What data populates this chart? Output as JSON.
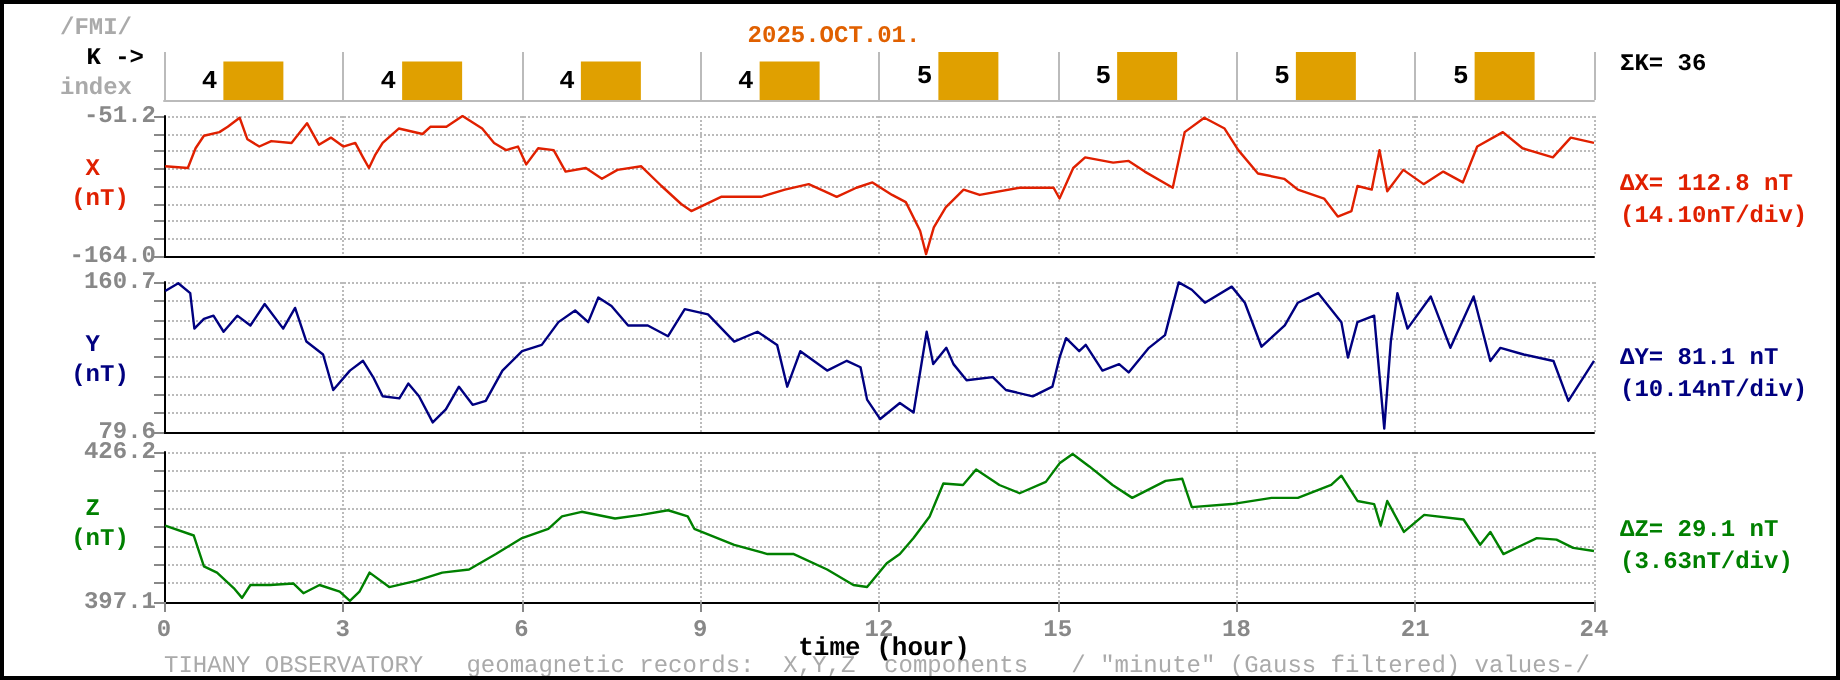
{
  "chart_data": [
    {
      "type": "bar",
      "title": "2025.OCT.01.",
      "ylabel": "K ->",
      "annotations": [
        "/FMI/",
        "index",
        "ΣK= 36"
      ],
      "categories": [
        null,
        null,
        null,
        null,
        null,
        null,
        null,
        null
      ],
      "values": [
        4,
        4,
        4,
        4,
        5,
        5,
        5,
        5
      ],
      "color": "#e0a000",
      "data_labels": true,
      "grid": "x",
      "tick_labels": false
    },
    {
      "type": "line",
      "ylabel": "X (nT)",
      "annotations": [
        "ΔX= 112.8 nT",
        "(14.10nT/div)"
      ],
      "xlim": [
        0,
        24
      ],
      "xticks": [
        0,
        3,
        6,
        9,
        12,
        15,
        18,
        21,
        24
      ],
      "ylim": [
        -164,
        -51.2
      ],
      "yticks": [
        {
          "value": -164,
          "label": "-164.0"
        },
        {
          "value": -149.9,
          "label": null
        },
        {
          "value": -135.8,
          "label": null
        },
        {
          "value": -121.7,
          "label": null
        },
        {
          "value": -107.6,
          "label": null
        },
        {
          "value": -93.5,
          "label": null
        },
        {
          "value": -79.4,
          "label": null
        },
        {
          "value": -65.3,
          "label": null
        },
        -51.2
      ],
      "grid": true,
      "tick_labels": "y",
      "series": [
        {
          "color": "#e02000",
          "x": [
            0.02,
            0.4,
            0.53,
            0.67,
            0.93,
            1.07,
            1.27,
            1.4,
            1.6,
            1.8,
            2.14,
            2.4,
            2.6,
            2.8,
            3.01,
            3.21,
            3.34,
            3.44,
            3.54,
            3.67,
            3.94,
            4.34,
            4.47,
            4.74,
            5.01,
            5.34,
            5.54,
            5.74,
            5.94,
            6.08,
            6.28,
            6.54,
            6.74,
            7.08,
            7.35,
            7.61,
            8.01,
            8.35,
            8.68,
            8.85,
            9.35,
            10.02,
            10.42,
            10.82,
            11.09,
            11.29,
            11.62,
            11.89,
            12.22,
            12.45,
            12.69,
            12.79,
            12.92,
            13.12,
            13.42,
            13.69,
            14.36,
            14.93,
            15.03,
            15.26,
            15.46,
            15.93,
            16.19,
            16.46,
            16.93,
            17.13,
            17.46,
            17.8,
            18.03,
            18.36,
            18.8,
            19.03,
            19.47,
            19.7,
            19.93,
            20.03,
            20.27,
            20.4,
            20.53,
            20.8,
            21.14,
            21.47,
            21.8,
            22.04,
            22.47,
            22.8,
            23.31,
            23.61,
            24
          ],
          "values": [
            -91.7,
            -93.1,
            -77.2,
            -67.1,
            -64.2,
            -59.9,
            -52.6,
            -70,
            -75.8,
            -71.4,
            -72.9,
            -57,
            -74.3,
            -68.6,
            -75.8,
            -72.9,
            -84.5,
            -93.1,
            -83,
            -72.9,
            -61.3,
            -65.7,
            -59.9,
            -59.9,
            -51.2,
            -61.3,
            -72.9,
            -78.7,
            -75.8,
            -90.2,
            -77.2,
            -78.7,
            -96,
            -93.1,
            -101.8,
            -94.6,
            -91.7,
            -107.6,
            -122.1,
            -127.8,
            -116.3,
            -116.3,
            -110.5,
            -106.1,
            -111.9,
            -116.3,
            -109,
            -104.7,
            -114.8,
            -120.6,
            -143.7,
            -162.5,
            -140.9,
            -124.9,
            -110.5,
            -114.8,
            -109,
            -109,
            -117.7,
            -93.1,
            -84.5,
            -88.8,
            -87.4,
            -96,
            -109,
            -64.2,
            -52.6,
            -61.3,
            -78.7,
            -97.5,
            -101.8,
            -110.5,
            -117.7,
            -132.2,
            -127.8,
            -107.6,
            -110.5,
            -78.7,
            -111.9,
            -94.6,
            -106.1,
            -96,
            -104.7,
            -75.8,
            -64.2,
            -77.2,
            -84.5,
            -68.6,
            -72.9
          ]
        }
      ]
    },
    {
      "type": "line",
      "ylabel": "Y (nT)",
      "annotations": [
        "ΔY= 81.1 nT",
        "(10.14nT/div)"
      ],
      "xlim": [
        0,
        24
      ],
      "xticks": [
        0,
        3,
        6,
        9,
        12,
        15,
        18,
        21,
        24
      ],
      "ylim": [
        79.6,
        160.7
      ],
      "yticks": [
        79.6,
        {
          "value": 89.7,
          "label": null
        },
        {
          "value": 99.9,
          "label": null
        },
        {
          "value": 110,
          "label": null
        },
        {
          "value": 120.2,
          "label": null
        },
        {
          "value": 130.3,
          "label": null
        },
        {
          "value": 140.4,
          "label": null
        },
        {
          "value": 150.6,
          "label": null
        },
        160.7
      ],
      "grid": true,
      "tick_labels": "y",
      "series": [
        {
          "color": "#000080",
          "x": [
            0.02,
            0.24,
            0.44,
            0.51,
            0.67,
            0.83,
            1,
            1.23,
            1.45,
            1.69,
            2,
            2.2,
            2.39,
            2.67,
            2.84,
            3.12,
            3.34,
            3.51,
            3.67,
            3.95,
            4.1,
            4.28,
            4.51,
            4.73,
            4.95,
            5.18,
            5.4,
            5.68,
            6.01,
            6.34,
            6.62,
            6.9,
            7.12,
            7.29,
            7.51,
            7.79,
            8.12,
            8.46,
            8.74,
            9.13,
            9.57,
            9.96,
            10.29,
            10.46,
            10.68,
            11.13,
            11.46,
            11.69,
            11.8,
            12.02,
            12.35,
            12.58,
            12.8,
            12.91,
            13.13,
            13.25,
            13.47,
            13.91,
            14.13,
            14.58,
            14.91,
            15.03,
            15.14,
            15.36,
            15.47,
            15.75,
            16.03,
            16.19,
            16.53,
            16.8,
            17.03,
            17.25,
            17.47,
            17.92,
            18.14,
            18.42,
            18.81,
            19.03,
            19.37,
            19.76,
            19.87,
            20.03,
            20.31,
            20.48,
            20.59,
            20.7,
            20.87,
            21.26,
            21.59,
            21.98,
            22.26,
            22.43,
            22.82,
            23.32,
            23.57,
            24
          ],
          "values": [
            155.8,
            160,
            154.7,
            135.5,
            140.8,
            142.5,
            133.8,
            142.5,
            137.2,
            148.8,
            135.5,
            146.7,
            128.5,
            121.5,
            102.3,
            112.8,
            118.1,
            109.3,
            98.9,
            97.8,
            105.8,
            98.9,
            84.8,
            91.8,
            104.1,
            94.3,
            96.4,
            112.8,
            123.3,
            126.7,
            139,
            145.3,
            139,
            152.3,
            147.7,
            137.2,
            137.2,
            131.4,
            146,
            143.2,
            128.5,
            133.8,
            126.7,
            104.1,
            123.3,
            112.8,
            118.1,
            114.6,
            97.1,
            86.6,
            95.3,
            90.1,
            133.8,
            116.3,
            125.1,
            116.3,
            107.6,
            109.3,
            102.3,
            98.9,
            104.1,
            119.8,
            130.3,
            123.3,
            126.7,
            112.8,
            116.3,
            111.8,
            125.1,
            132,
            160.5,
            156.5,
            149.5,
            158.2,
            149.5,
            125.7,
            137.2,
            149.5,
            154.7,
            139,
            119.8,
            139,
            142.5,
            81.4,
            128.5,
            154.7,
            135.5,
            152.9,
            125.1,
            152.9,
            118,
            125.1,
            121.5,
            118,
            96.4,
            118
          ]
        }
      ]
    },
    {
      "type": "line",
      "ylabel": "Z (nT)",
      "xlabel": "time (hour)",
      "annotations": [
        "ΔZ= 29.1 nT",
        "(3.63nT/div)",
        "TIHANY OBSERVATORY   geomagnetic records:  X,Y,Z  components   / \"minute\" (Gauss filtered) values-/"
      ],
      "xlim": [
        0,
        24
      ],
      "xticks": [
        0,
        3,
        6,
        9,
        12,
        15,
        18,
        21,
        24
      ],
      "ylim": [
        397.1,
        426.2
      ],
      "yticks": [
        397.1,
        {
          "value": 400.7,
          "label": null
        },
        {
          "value": 404.4,
          "label": null
        },
        {
          "value": 408,
          "label": null
        },
        {
          "value": 411.6,
          "label": null
        },
        {
          "value": 415.3,
          "label": null
        },
        {
          "value": 418.9,
          "label": null
        },
        {
          "value": 422.5,
          "label": null
        },
        426.2
      ],
      "grid": true,
      "series": [
        {
          "color": "#008000",
          "x": [
            0.02,
            0.5,
            0.67,
            0.89,
            1.17,
            1.31,
            1.45,
            1.78,
            2.17,
            2.34,
            2.61,
            2.95,
            3.12,
            3.28,
            3.45,
            3.78,
            4.23,
            4.67,
            5.12,
            5.57,
            6.01,
            6.45,
            6.68,
            7.01,
            7.57,
            8.01,
            8.46,
            8.79,
            8.9,
            9.57,
            10.13,
            10.57,
            11.13,
            11.57,
            11.8,
            12.13,
            12.35,
            12.58,
            12.85,
            13.08,
            13.41,
            13.63,
            14.02,
            14.36,
            14.8,
            15.03,
            15.25,
            15.53,
            15.92,
            16.25,
            16.81,
            17.09,
            17.25,
            17.92,
            18.59,
            19.03,
            19.59,
            19.76,
            20.03,
            20.31,
            20.42,
            20.53,
            20.81,
            21.15,
            21.81,
            22.09,
            22.26,
            22.48,
            23.04,
            23.37,
            23.65,
            24
          ],
          "values": [
            411.9,
            410,
            404,
            402.8,
            399.8,
            397.9,
            400.4,
            400.4,
            400.7,
            398.8,
            400.4,
            399.1,
            397.3,
            399.1,
            402.8,
            400,
            401.2,
            402.8,
            403.4,
            406.4,
            409.5,
            411.3,
            413.7,
            414.6,
            413.3,
            414,
            414.9,
            413.7,
            411.3,
            408.2,
            406.4,
            406.4,
            403.4,
            400.4,
            400,
            404.6,
            406.4,
            409.5,
            413.7,
            420.1,
            419.8,
            422.8,
            419.8,
            418.2,
            420.4,
            424,
            425.8,
            423.4,
            419.8,
            417.3,
            420.6,
            421,
            415.5,
            416.1,
            417.3,
            417.3,
            419.8,
            421.6,
            416.7,
            416.1,
            411.9,
            416.7,
            410.7,
            414,
            413.1,
            408.2,
            410.7,
            406.4,
            409.5,
            409.2,
            407.6,
            407
          ]
        }
      ]
    }
  ]
}
